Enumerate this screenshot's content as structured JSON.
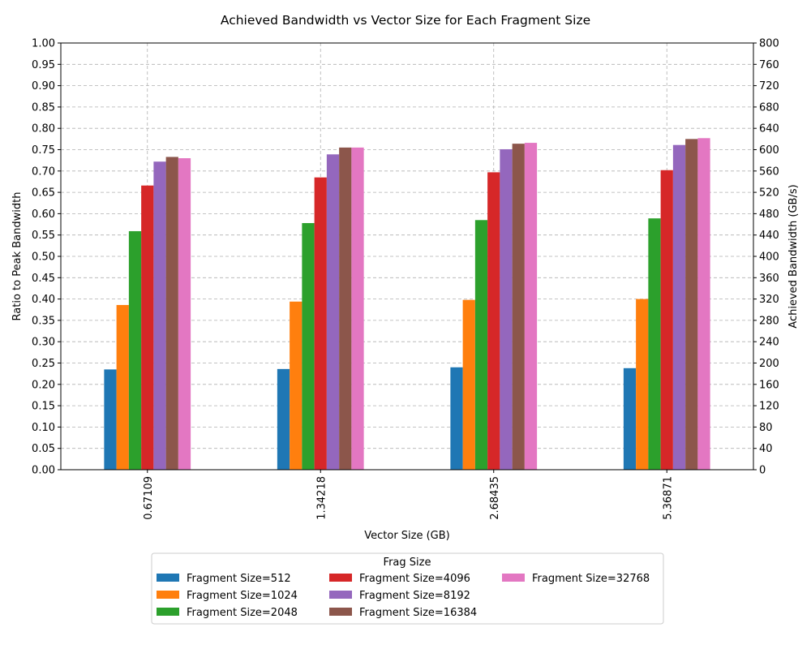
{
  "chart_data": {
    "type": "bar",
    "title": "Achieved Bandwidth vs Vector Size for Each Fragment Size",
    "xlabel": "Vector Size (GB)",
    "ylabel": "Ratio to Peak Bandwidth",
    "y2label": "Achieved Bandwidth (GB/s)",
    "categories": [
      "0.67109",
      "1.34218",
      "2.68435",
      "5.36871"
    ],
    "ylim": [
      0,
      1.0
    ],
    "y2lim": [
      0,
      800
    ],
    "yticks": [
      "0.00",
      "0.05",
      "0.10",
      "0.15",
      "0.20",
      "0.25",
      "0.30",
      "0.35",
      "0.40",
      "0.45",
      "0.50",
      "0.55",
      "0.60",
      "0.65",
      "0.70",
      "0.75",
      "0.80",
      "0.85",
      "0.90",
      "0.95",
      "1.00"
    ],
    "y2ticks": [
      "0",
      "40",
      "80",
      "120",
      "160",
      "200",
      "240",
      "280",
      "320",
      "360",
      "400",
      "440",
      "480",
      "520",
      "560",
      "600",
      "640",
      "680",
      "720",
      "760",
      "800"
    ],
    "grid": true,
    "legend": {
      "title": "Frag Size",
      "placement": "bottom-center",
      "columns": 3
    },
    "series": [
      {
        "name": "Fragment Size=512",
        "color": "#1f77b4",
        "values": [
          0.235,
          0.236,
          0.24,
          0.238
        ]
      },
      {
        "name": "Fragment Size=1024",
        "color": "#ff7f0e",
        "values": [
          0.386,
          0.394,
          0.398,
          0.4
        ]
      },
      {
        "name": "Fragment Size=2048",
        "color": "#2ca02c",
        "values": [
          0.559,
          0.578,
          0.585,
          0.589
        ]
      },
      {
        "name": "Fragment Size=4096",
        "color": "#d62728",
        "values": [
          0.666,
          0.685,
          0.697,
          0.702
        ]
      },
      {
        "name": "Fragment Size=8192",
        "color": "#9467bd",
        "values": [
          0.722,
          0.739,
          0.751,
          0.761
        ]
      },
      {
        "name": "Fragment Size=16384",
        "color": "#8c564b",
        "values": [
          0.733,
          0.755,
          0.764,
          0.775
        ]
      },
      {
        "name": "Fragment Size=32768",
        "color": "#e377c2",
        "values": [
          0.73,
          0.755,
          0.766,
          0.777
        ]
      }
    ]
  }
}
